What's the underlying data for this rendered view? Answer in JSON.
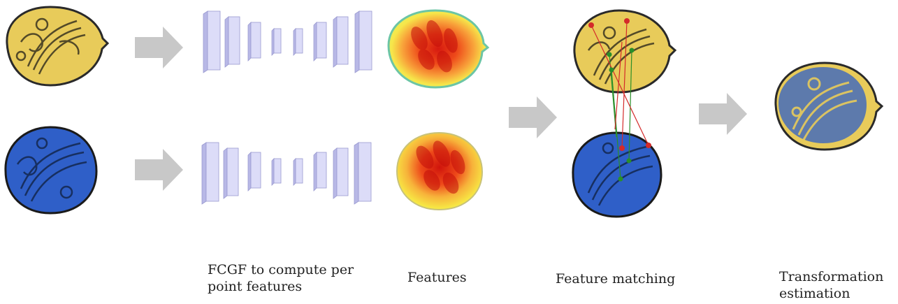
{
  "labels": {
    "fcgf": "FCGF to compute per point features",
    "features": "Features",
    "matching": "Feature matching",
    "transformation": "Transformation estimation"
  },
  "colors": {
    "coin_gold": "#e8cb5a",
    "coin_blue": "#2f5fc8",
    "arrow": "#c8c8c8",
    "layer_face": "#d9d9f7",
    "match_green": "#2a8f2a",
    "match_red": "#d42a2a"
  },
  "icons": [
    "coin-gold-icon",
    "coin-blue-icon",
    "network-layers-icon",
    "feature-heatmap-icon",
    "match-lines-icon",
    "aligned-coins-icon",
    "arrow-right-icon"
  ]
}
